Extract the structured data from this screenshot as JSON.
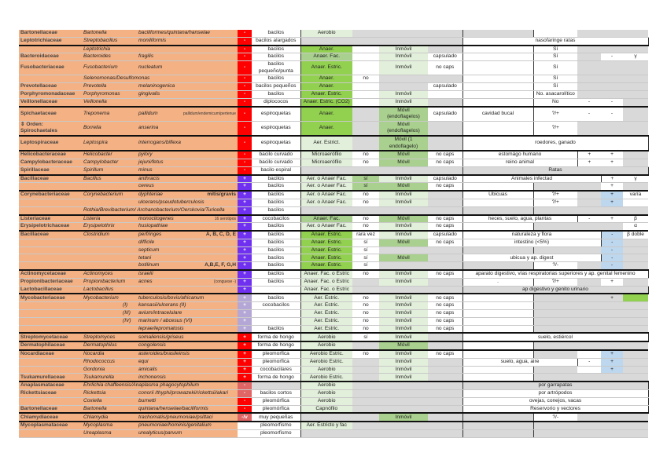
{
  "rows": [
    {
      "c": [
        "Bartonellaceae",
        "Bartonella",
        "baciliformes/quintana/hanselae",
        "-",
        "bacilos",
        "Aerobio",
        "",
        "",
        "",
        "",
        "",
        "",
        "",
        ""
      ],
      "s": "rwlggggwgggg"
    },
    {
      "c": [
        "Leptotrichiaceae",
        "Streptobacillus",
        "moniliformis",
        "-",
        "bacilos alargados",
        "",
        "",
        "",
        "",
        "nasofaringe ratas",
        "",
        "",
        "",
        ""
      ],
      "s": "rwggggwgggg"
    },
    {
      "c": [
        "",
        "Leptotrichia",
        "",
        "-",
        "bacilos",
        "Anaer.",
        "",
        "Inmóvil",
        "",
        "",
        "Sí",
        "",
        "",
        ""
      ],
      "s": "rwGwlgwwggg",
      "gs": 1
    },
    {
      "c": [
        "Bacteroidaceae",
        "Bacteroides",
        "fragilis",
        "-",
        "bacilos",
        "Anaer. Fac.",
        "",
        "Inmóvil",
        "capsulado",
        "",
        "Sí",
        "",
        "-",
        "γ"
      ],
      "s": "rwmwlwwwgww"
    },
    {
      "c": [
        "Fusobacteriaceae",
        "Fusobacterium",
        "nucleatum",
        "-",
        "bacilos pequeño/punta",
        "Anaer. Estric.",
        "",
        "Inmóvil",
        "no caps",
        "",
        "Sí",
        "",
        "",
        ""
      ],
      "s": "rwGwlwwwggg"
    },
    {
      "c": [
        "",
        "Selenomonas/Desulfomonas",
        "",
        "-",
        "bacilos",
        "Anaer.",
        "no",
        "",
        "",
        "",
        "Sí",
        "",
        "",
        ""
      ],
      "s": "rwGwggwwggg"
    },
    {
      "c": [
        "Prevotellaceae",
        "Prevotella",
        "melaninogenica",
        "-",
        "bacilos pequeños",
        "Anaer.",
        "",
        "",
        "capsulado",
        "",
        "Sí",
        "",
        "",
        ""
      ],
      "s": "rwGwgwwwggg"
    },
    {
      "c": [
        "Porphyromonadaceae",
        "Porphyromonas",
        "gingivalis",
        "-",
        "bacilos",
        "Anaer. Estric.",
        "",
        "Inmóvil",
        "",
        "",
        "No. asacarolítico",
        "",
        "",
        ""
      ],
      "s": "rwGwlwwwggg"
    },
    {
      "c": [
        "Veillonellaceae",
        "Veillonella",
        "",
        "-",
        "diplococos",
        "Anaer. Estric. (CO2)",
        "",
        "Inmóvil",
        "",
        "",
        "No",
        "-",
        "-",
        ""
      ],
      "s": "rwGwlgwwwwg"
    },
    {
      "c": [
        "Spichaetaceae",
        "Treponema",
        "pallidum",
        "-",
        "espiroquetas",
        "Anaer.",
        "",
        "Móvil (endoflagelos)",
        "capsulado",
        "cavidad bucal",
        "?/+",
        "-",
        "-",
        ""
      ],
      "n": "pallidum/endemicum/pertenue",
      "s": "rwGgmwwwwwg",
      "gs": 1
    },
    {
      "c": [
        "⇕ Orden: Spirochaetales",
        "Borrelia",
        "anserina",
        "-",
        "espiroquetas",
        "Anaer.",
        "",
        "Móvil (endoflagelos)",
        "",
        "",
        "?/+",
        "",
        "",
        ""
      ],
      "s": "rwGgmgwwggg"
    },
    {
      "c": [
        "Leptospiraceae",
        "Leptospira",
        "interrogans/biflexa",
        "-",
        "espiroquetas",
        "Aer. Estrict.",
        "",
        "Móvil (1 endoflagelo)",
        "",
        "roedores, ganado",
        "",
        "",
        "",
        ""
      ],
      "s": "rwlgmgwgggg",
      "gs": 1
    },
    {
      "c": [
        "Helicobacteraceae",
        "Helicobacter",
        "pylory",
        "-",
        "bacilo curvado",
        "Microaerófilo",
        "no",
        "Móvil",
        "no caps",
        "estomágo humano",
        "",
        "+",
        "+",
        ""
      ],
      "s": "rwlwmwwgwwg",
      "gs": 1
    },
    {
      "c": [
        "Campylobacteraceae",
        "Campylobacter",
        "jejuni/fetus",
        "-",
        "bacilo curvado",
        "Microaerófilo",
        "no",
        "Móvil",
        "no caps",
        "reino animal",
        "",
        "+",
        "+",
        ""
      ],
      "s": "rwlwmwwgwwg"
    },
    {
      "c": [
        "Spirillaceae",
        "Spirillum",
        "minus",
        "-",
        "bacilo espiral",
        "",
        "",
        "",
        "",
        "Ratas",
        "",
        "",
        "",
        ""
      ],
      "s": "rwgggggggg g"
    },
    {
      "c": [
        "Bacillaceae",
        "Bacillus",
        "anthracis",
        "+",
        "bacilos",
        "Aer. o Anaer Fac.",
        "sí",
        "Inmóvil",
        "capsulado",
        "Animales infectad",
        "",
        "",
        "+",
        "γ"
      ],
      "s": "pwlmlwwggww",
      "gs": 1
    },
    {
      "c": [
        "",
        "",
        "cereus",
        "+",
        "bacilos",
        "Aer. o Anaer Fac.",
        "sí",
        "Móvil",
        "no caps",
        "",
        "",
        "",
        "+",
        ""
      ],
      "s": "pwlmmwwggwg"
    },
    {
      "c": [
        "Corynebacteriaceae",
        "Corynebacterium",
        "dyphteriae",
        "+",
        "bacilos",
        "Aer. o Anaer Fac.",
        "no",
        "Inmóvil",
        "",
        "Ubicuas",
        "?/+",
        "",
        "+",
        "varía"
      ],
      "n": "mitis/gravis",
      "nb": 1,
      "s": "pwlwlgwwgbw",
      "gs": 1
    },
    {
      "c": [
        "",
        "",
        "ulcerans/pseudotuberculosis",
        "+",
        "bacilos",
        "Aer. o Anaer Fac.",
        "no",
        "Inmóvil",
        "",
        "",
        "?/+",
        "",
        "+",
        ""
      ],
      "s": "pwlwlgwwgbw"
    },
    {
      "c": [
        "",
        "Rothia/Brevibacterium/ Archanobacterium/Oerskovia/Turicella",
        "",
        "+",
        "bacilos",
        "",
        "",
        "",
        "",
        "",
        "",
        "",
        "",
        ""
      ],
      "s": "pwggggggggg"
    },
    {
      "c": [
        "Listeriaceae",
        "Listeria",
        "monocitogenes",
        "+",
        "cocobacilos",
        "Anaer. Fac.",
        "no",
        "Móvil",
        "no caps",
        "heces, suelo, agua, plantas",
        "",
        "-",
        "+",
        "β"
      ],
      "n": "16 serotipos",
      "s": "pwmwmwwgwww",
      "gs": 1
    },
    {
      "c": [
        "Erysipelotrichaceae",
        "Erysipelothrix",
        "husiopathiae",
        "+",
        "bacilos",
        "Aer. o Anaer Fac.",
        "no",
        "Inmóvil",
        "no caps",
        "",
        "",
        "",
        "",
        "α"
      ],
      "s": "pwlwlwwgggw"
    },
    {
      "c": [
        "Bacillaceae",
        "Clostridium",
        "perfringes",
        "+",
        "bacilos",
        "Anaer. Estric.",
        "rara vez",
        "Inmóvil",
        "capsulado",
        "naturaleza y flora",
        "",
        "",
        "-",
        "β doble"
      ],
      "n": "A, B, C, D, E",
      "nb": 1,
      "s": "pwGwlwwggbw",
      "gs": 1
    },
    {
      "c": [
        "",
        "",
        "difficile",
        "+",
        "bacilos",
        "Anaer. Estric.",
        "sí",
        "Móvil",
        "no caps",
        "intestino (<5%)",
        "",
        "",
        "-",
        ""
      ],
      "s": "pwGwmwwggbg"
    },
    {
      "c": [
        "",
        "",
        "septicum",
        "+",
        "bacilos",
        "Anaer. Estric.",
        "sí",
        "",
        "",
        "",
        "",
        "",
        "-",
        ""
      ],
      "s": "pwGwggggg bg"
    },
    {
      "c": [
        "",
        "",
        "tetani",
        "+",
        "bacilos",
        "Anaer. Estric.",
        "sí",
        "Móvil",
        "",
        "ubicua y ap. digest",
        "",
        "",
        "-",
        ""
      ],
      "s": "pwGwmgwggbg"
    },
    {
      "c": [
        "",
        "",
        "botilinum",
        "+",
        "bacilos",
        "Anaer. Estric.",
        "sí",
        "",
        "",
        "",
        "?/-",
        "",
        "-",
        ""
      ],
      "n": "A,B,E, F, G,H",
      "nb": 1,
      "s": "pwGwgggwgbg"
    },
    {
      "c": [
        "Actinomycetaceae",
        "Actinomyces",
        "israelii",
        "+",
        "bacilos",
        "Anaer. Fac. o Estric",
        "no",
        "Inmóvil",
        "no caps",
        "aparato digestivo, vías respiratorias superiores y ap. genital femenino",
        "",
        "",
        "",
        ""
      ],
      "s": "pwlwlwwgggg",
      "gs": 1
    },
    {
      "c": [
        "Propionibacteriaceae",
        "Propionibacterium",
        "acnes",
        "+",
        "bacilos",
        "Anaer. Fac. o Estric",
        "",
        "Inmóvil",
        "",
        ".",
        "?/+",
        "",
        "+",
        ""
      ],
      "n": "(conguese -)",
      "s": "pwlglgwwgwg"
    },
    {
      "c": [
        "Lactobacillaceae",
        "Lactobacillus",
        "",
        "+",
        "",
        "Anaer. Fac. o Estric",
        "",
        "",
        "",
        "ap digestivo y genito urinario",
        "",
        "",
        "",
        ""
      ],
      "s": "pwlggggggggg"
    },
    {
      "c": [
        "Mycobacteriaceae",
        "Mycobacterium",
        "tuberculosis/bovis/africanum",
        "+",
        "bacilos",
        "Aer. Estric.",
        "no",
        "Inmóvil",
        "no caps",
        "",
        "",
        "",
        "+",
        ""
      ],
      "s": "LwlwlwwgggG",
      "gs": 1
    },
    {
      "c": [
        "",
        "",
        "kansasii/ulcerans (II)",
        "+",
        "cocobacilos",
        "Aer. Estric.",
        "no",
        "Inmóvil",
        "no caps",
        "",
        "",
        "",
        "",
        ""
      ],
      "p": "(I)",
      "s": "Lwlwlwwgggg"
    },
    {
      "c": [
        "",
        "",
        "avium/intracelulare",
        "+",
        "",
        "Aer. Estric.",
        "no",
        "Inmóvil",
        "no caps",
        "",
        "",
        "",
        "",
        ""
      ],
      "p": "(III)",
      "s": "Lwlwlwwgggg"
    },
    {
      "c": [
        "",
        "",
        "marinum / abcesus (VI)",
        "+",
        "",
        "Aer. Estric.",
        "no",
        "Inmóvil",
        "no caps",
        "",
        "",
        "",
        "",
        ""
      ],
      "p": "(IV)",
      "s": "Lwlwlwwgggg"
    },
    {
      "c": [
        "",
        "",
        "leprae/lepromatosis",
        "+",
        "bacilos",
        "Aer. Estric.",
        "no",
        "Inmóvil",
        "no caps",
        "",
        "",
        "",
        "",
        ""
      ],
      "s": "Lwlwlwwgggg"
    },
    {
      "c": [
        "Streptomycetaceae",
        "Streptomyces",
        "somaliensis/griseus",
        "+",
        "forma de hongo",
        "Aerobio",
        "sí",
        "Inmóvil",
        "",
        "suelo, estiércol",
        "",
        "",
        "",
        ""
      ],
      "s": "rwlwlgwgggg",
      "gs": 1
    },
    {
      "c": [
        "Dermatophilaceae",
        "Dermatophilus",
        "congolensis",
        "+",
        "forma de hongo",
        "Aerobio",
        "",
        "Móvil",
        "",
        "",
        "",
        "",
        "",
        ""
      ],
      "s": "rwlgmgwgggg",
      "gs": 1
    },
    {
      "c": [
        "Nocardiaceae",
        "Nocardia",
        "asteroides/brasileinsis",
        "+",
        "pleomorfica",
        "Aerobio Estric.",
        "no",
        "Inmóvil",
        "no caps",
        "",
        "",
        "",
        "+",
        ""
      ],
      "s": "rwlwlwwgwbg",
      "gs": 1
    },
    {
      "c": [
        "",
        "Rhodococcus",
        "equi",
        "+",
        "pleomorfica",
        "Aerobio Estric.",
        "",
        "Inmóvil",
        "",
        "suelo, agua, aire",
        "",
        "-",
        "+",
        ""
      ],
      "s": "rwlglgwgwbg"
    },
    {
      "c": [
        "",
        "Gordonia",
        "amicalis",
        "+",
        "cocobacilares",
        "Aerobio",
        "",
        "Inmóvil",
        "",
        "",
        "",
        "",
        "+",
        ""
      ],
      "s": "rwlglgwgwbg"
    },
    {
      "c": [
        "Tsukamurellaceae",
        "Tsukamurella",
        "inchonensis",
        "+",
        "forma de hongo",
        "Aerobio Estric.",
        "",
        "Inmóvil",
        "",
        "",
        "",
        "",
        "",
        ""
      ],
      "s": "rwlglgwgggg"
    },
    {
      "c": [
        "Anaplasmataceae",
        "Ehrlichia chaffeensis/Anaplasma phagocytophilum",
        "",
        "-",
        "",
        "Aerobio",
        "",
        "",
        "",
        "por garrapatas",
        "",
        "",
        "",
        ""
      ],
      "s": "Rglggggwgggg",
      "gs": 1
    },
    {
      "c": [
        "Rickettsiaceae",
        "Rickettsia",
        "conorii /thyphi/prowazeki/rickettsii/akari",
        "-",
        "bacilos cortos",
        "Aerobio",
        "",
        "",
        "",
        "por artrópodos",
        "",
        "",
        "",
        ""
      ],
      "s": "Rwlgggwgggg"
    },
    {
      "c": [
        "",
        "Coxiella",
        "burnetti",
        "-",
        "pleomórfica",
        "Aerobio",
        "",
        "",
        "",
        "ovejas, conejos, vacas",
        "",
        "",
        "",
        ""
      ],
      "s": "rwlgggwgggg"
    },
    {
      "c": [
        "Bartonellaceae",
        "Bartonella",
        "quintana/henselae/baciliformis",
        "-",
        "pleomórfica",
        "Capnófilo",
        "",
        "",
        "",
        "Reservorio y vectores",
        "",
        "",
        "",
        ""
      ],
      "s": "rwlgggwgggg"
    },
    {
      "c": [
        "Chlamydiaceae",
        "Chlamydia",
        "trachomatis/pneumoniae/psittaci",
        "-/v",
        "muy pequeñas",
        "",
        "",
        "Inmóvil",
        "",
        "",
        "?/-",
        "",
        "",
        ""
      ],
      "s": "Rwggmggwggg",
      "gs": 1
    },
    {
      "c": [
        "Mycoplasmataceae",
        "Mycoplasma",
        "pneumoniae/hominis/genitalium",
        "no",
        "pleomorfismo",
        "Aer. Estricto y fac",
        "",
        "",
        "",
        "",
        "",
        "",
        "",
        ""
      ],
      "s": "wwlggggggggg",
      "gs": 1
    },
    {
      "c": [
        "",
        "Ureaplasma",
        "urealyticus/parvum",
        "no",
        "pleomorfismo",
        "",
        "",
        "",
        "",
        "",
        "",
        "",
        "",
        ""
      ],
      "s": "wwggggggggg"
    }
  ],
  "colors": {
    "orange": "#f4b184",
    "gram_negative": "#ff0000",
    "gram_positive": "#7030f0",
    "acid_fast": "#b4a7d6",
    "green": "#92d050",
    "light_green": "#e2efda",
    "blue": "#bdd7ee",
    "gray": "#d9d9d9"
  }
}
